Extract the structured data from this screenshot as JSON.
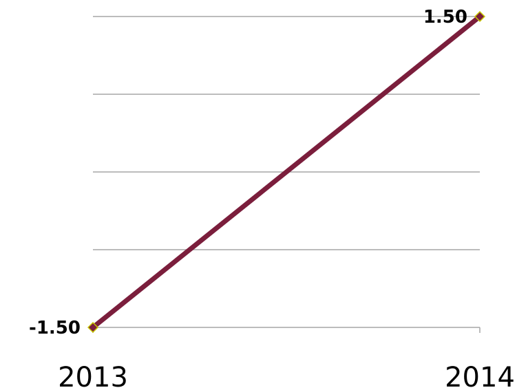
{
  "colors": {
    "series_line": "#7b1e3c",
    "marker_fill": "#7b1e3c",
    "marker_stroke": "#c8c800",
    "gridline": "#a6a6a6"
  },
  "chart_data": {
    "type": "line",
    "categories": [
      "2013",
      "2014"
    ],
    "series": [
      {
        "values": [
          -1.5,
          1.5
        ],
        "data_labels": [
          "-1.50",
          "1.50"
        ]
      }
    ],
    "ylim": [
      -1.5,
      1.5
    ],
    "grid": true,
    "legend": "none"
  }
}
